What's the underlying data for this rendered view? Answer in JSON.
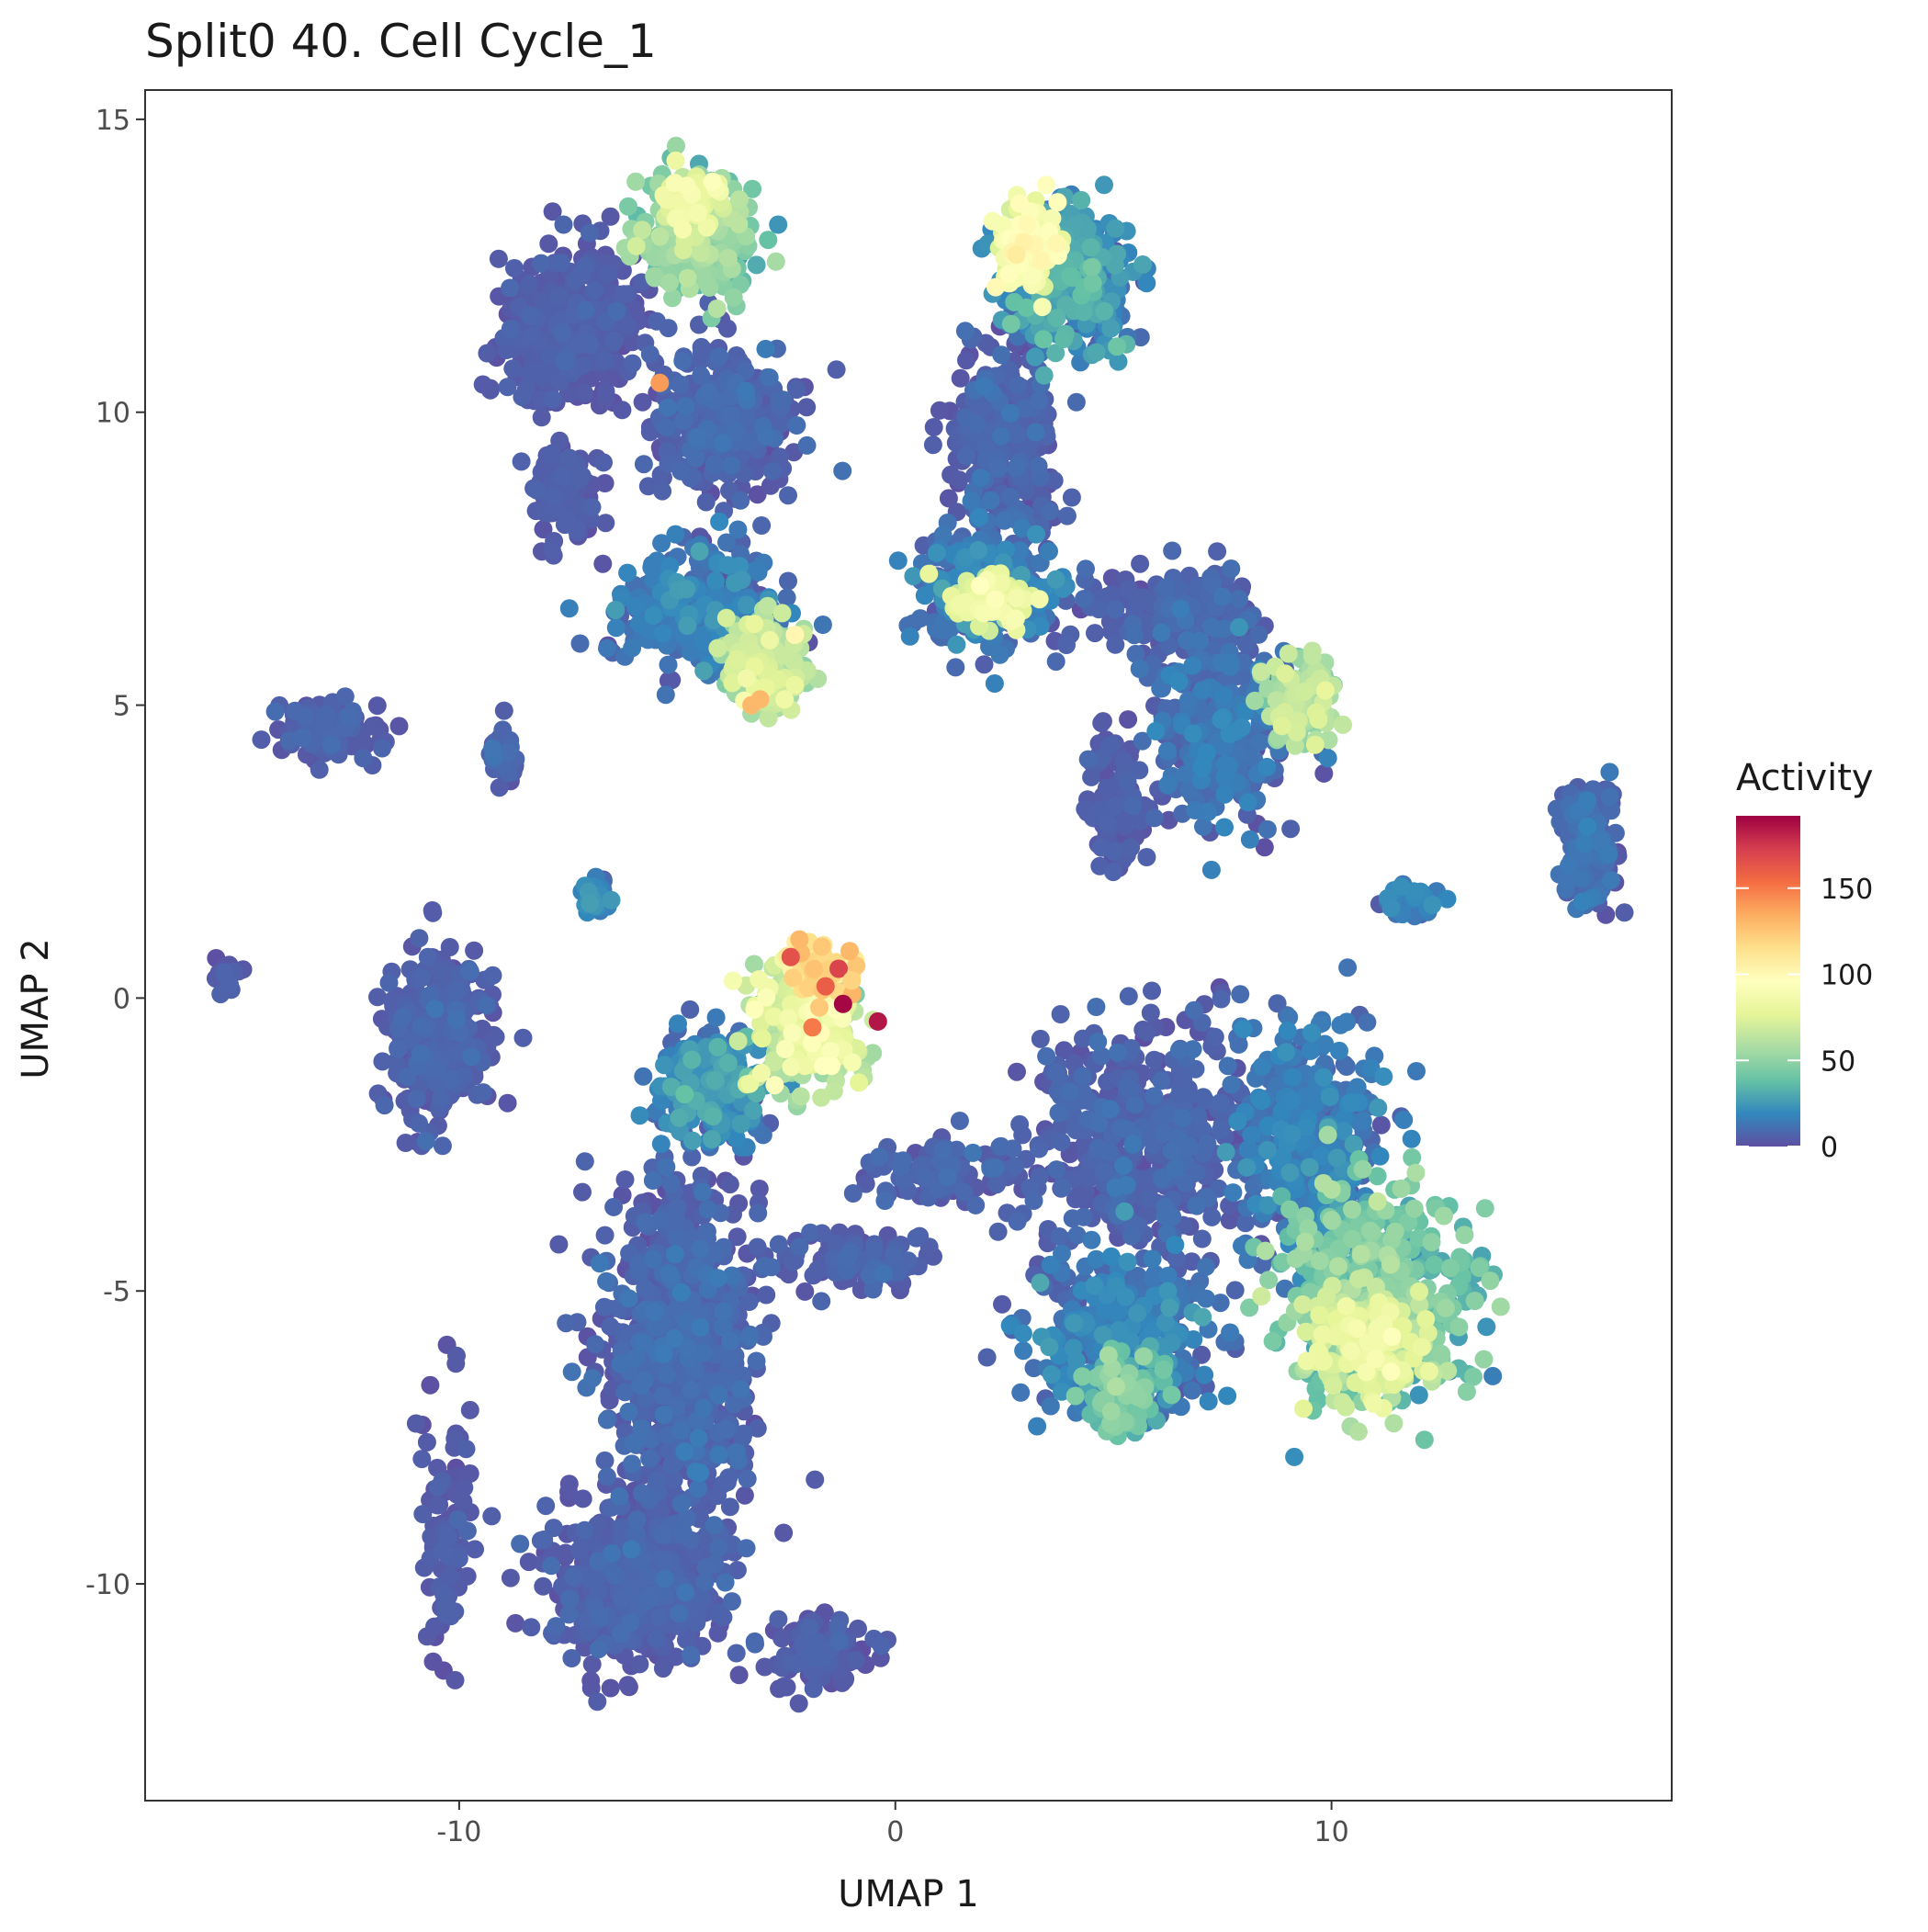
{
  "chart_data": {
    "type": "scatter",
    "title": "Split0 40. Cell Cycle_1",
    "xlabel": "UMAP 1",
    "ylabel": "UMAP 2",
    "xlim": [
      -17.2,
      17.8
    ],
    "ylim": [
      -13.7,
      15.5
    ],
    "x_ticks": [
      -10,
      0,
      10
    ],
    "x_tick_labels": [
      "-10",
      "0",
      "10"
    ],
    "y_ticks": [
      -10,
      -5,
      0,
      5,
      10,
      15
    ],
    "y_tick_labels": [
      "-10",
      "-5",
      "0",
      "5",
      "10",
      "15"
    ],
    "grid": false,
    "legend": {
      "title": "Activity",
      "placement": "right",
      "range": [
        0,
        192
      ],
      "ticks": [
        0,
        50,
        100,
        150
      ],
      "tick_labels": [
        "0",
        "50",
        "100",
        "150"
      ],
      "colormap": [
        "#5E4FA2",
        "#3288BD",
        "#66C2A5",
        "#ABDDA4",
        "#E6F598",
        "#FFFFBF",
        "#FEE08B",
        "#FDAE61",
        "#F46D43",
        "#D53E4F",
        "#9E0142"
      ]
    },
    "clusters": [
      {
        "center": [
          -4.5,
          13.0
        ],
        "spread": [
          1.0,
          0.8
        ],
        "n": 380,
        "activity": 45,
        "spread_activity": 20
      },
      {
        "center": [
          -4.6,
          13.6
        ],
        "spread": [
          0.6,
          0.4
        ],
        "n": 80,
        "activity": 75,
        "spread_activity": 15
      },
      {
        "center": [
          -7.5,
          11.5
        ],
        "spread": [
          1.2,
          1.1
        ],
        "n": 420,
        "activity": 4,
        "spread_activity": 4
      },
      {
        "center": [
          -4.0,
          9.8
        ],
        "spread": [
          1.4,
          1.1
        ],
        "n": 360,
        "activity": 6,
        "spread_activity": 6
      },
      {
        "center": [
          -7.6,
          8.6
        ],
        "spread": [
          0.6,
          0.7
        ],
        "n": 110,
        "activity": 4,
        "spread_activity": 4
      },
      {
        "center": [
          -4.5,
          6.6
        ],
        "spread": [
          1.5,
          0.9
        ],
        "n": 380,
        "activity": 12,
        "spread_activity": 12
      },
      {
        "center": [
          -3.0,
          5.7
        ],
        "spread": [
          0.8,
          0.6
        ],
        "n": 180,
        "activity": 60,
        "spread_activity": 22
      },
      {
        "center": [
          3.0,
          12.8
        ],
        "spread": [
          0.6,
          0.6
        ],
        "n": 130,
        "activity": 85,
        "spread_activity": 18
      },
      {
        "center": [
          4.0,
          12.3
        ],
        "spread": [
          1.2,
          1.0
        ],
        "n": 320,
        "activity": 22,
        "spread_activity": 18
      },
      {
        "center": [
          2.5,
          9.5
        ],
        "spread": [
          1.0,
          1.4
        ],
        "n": 320,
        "activity": 6,
        "spread_activity": 6
      },
      {
        "center": [
          2.0,
          7.0
        ],
        "spread": [
          1.2,
          0.8
        ],
        "n": 320,
        "activity": 14,
        "spread_activity": 12
      },
      {
        "center": [
          2.2,
          6.8
        ],
        "spread": [
          0.8,
          0.3
        ],
        "n": 90,
        "activity": 75,
        "spread_activity": 18
      },
      {
        "center": [
          6.5,
          6.6
        ],
        "spread": [
          1.8,
          0.6
        ],
        "n": 200,
        "activity": 6,
        "spread_activity": 6
      },
      {
        "center": [
          7.5,
          4.5
        ],
        "spread": [
          1.3,
          1.3
        ],
        "n": 300,
        "activity": 10,
        "spread_activity": 10
      },
      {
        "center": [
          9.3,
          5.0
        ],
        "spread": [
          0.7,
          0.6
        ],
        "n": 140,
        "activity": 55,
        "spread_activity": 20
      },
      {
        "center": [
          5.0,
          3.4
        ],
        "spread": [
          0.6,
          1.0
        ],
        "n": 120,
        "activity": 4,
        "spread_activity": 4
      },
      {
        "center": [
          -13.1,
          4.6
        ],
        "spread": [
          0.9,
          0.4
        ],
        "n": 120,
        "activity": 5,
        "spread_activity": 5
      },
      {
        "center": [
          -9.0,
          4.2
        ],
        "spread": [
          0.3,
          0.4
        ],
        "n": 40,
        "activity": 6,
        "spread_activity": 6
      },
      {
        "center": [
          -6.8,
          1.7
        ],
        "spread": [
          0.35,
          0.3
        ],
        "n": 40,
        "activity": 14,
        "spread_activity": 12
      },
      {
        "center": [
          -10.5,
          -0.7
        ],
        "spread": [
          0.9,
          1.2
        ],
        "n": 340,
        "activity": 5,
        "spread_activity": 5
      },
      {
        "center": [
          -15.3,
          0.4
        ],
        "spread": [
          0.3,
          0.3
        ],
        "n": 15,
        "activity": 4,
        "spread_activity": 4
      },
      {
        "center": [
          -4.2,
          -1.5
        ],
        "spread": [
          1.0,
          0.8
        ],
        "n": 260,
        "activity": 18,
        "spread_activity": 14
      },
      {
        "center": [
          -2.0,
          -0.5
        ],
        "spread": [
          1.0,
          0.8
        ],
        "n": 260,
        "activity": 70,
        "spread_activity": 25
      },
      {
        "center": [
          -1.8,
          0.5
        ],
        "spread": [
          0.6,
          0.4
        ],
        "n": 50,
        "activity": 115,
        "spread_activity": 20
      },
      {
        "center": [
          -5.0,
          -6.0
        ],
        "spread": [
          1.4,
          2.4
        ],
        "n": 900,
        "activity": 6,
        "spread_activity": 7
      },
      {
        "center": [
          -6.0,
          -10.0
        ],
        "spread": [
          1.6,
          1.1
        ],
        "n": 600,
        "activity": 5,
        "spread_activity": 5
      },
      {
        "center": [
          -1.8,
          -11.2
        ],
        "spread": [
          1.0,
          0.5
        ],
        "n": 130,
        "activity": 4,
        "spread_activity": 4
      },
      {
        "center": [
          -10.3,
          -9.0
        ],
        "spread": [
          0.5,
          1.7
        ],
        "n": 100,
        "activity": 4,
        "spread_activity": 4
      },
      {
        "center": [
          5.5,
          -2.5
        ],
        "spread": [
          2.3,
          1.7
        ],
        "n": 550,
        "activity": 6,
        "spread_activity": 6
      },
      {
        "center": [
          5.2,
          -5.8
        ],
        "spread": [
          1.8,
          1.1
        ],
        "n": 340,
        "activity": 14,
        "spread_activity": 12
      },
      {
        "center": [
          5.2,
          -6.8
        ],
        "spread": [
          0.8,
          0.6
        ],
        "n": 110,
        "activity": 40,
        "spread_activity": 16
      },
      {
        "center": [
          9.5,
          -2.5
        ],
        "spread": [
          1.3,
          1.6
        ],
        "n": 360,
        "activity": 14,
        "spread_activity": 10
      },
      {
        "center": [
          11.0,
          -5.0
        ],
        "spread": [
          1.8,
          1.4
        ],
        "n": 480,
        "activity": 40,
        "spread_activity": 18
      },
      {
        "center": [
          10.8,
          -5.9
        ],
        "spread": [
          1.1,
          0.8
        ],
        "n": 220,
        "activity": 70,
        "spread_activity": 18
      },
      {
        "center": [
          1.0,
          -3.0
        ],
        "spread": [
          1.5,
          0.4
        ],
        "n": 110,
        "activity": 6,
        "spread_activity": 6
      },
      {
        "center": [
          -1.0,
          -4.5
        ],
        "spread": [
          1.6,
          0.4
        ],
        "n": 110,
        "activity": 5,
        "spread_activity": 5
      },
      {
        "center": [
          15.9,
          2.6
        ],
        "spread": [
          0.5,
          0.9
        ],
        "n": 160,
        "activity": 8,
        "spread_activity": 8
      },
      {
        "center": [
          11.8,
          1.6
        ],
        "spread": [
          0.6,
          0.25
        ],
        "n": 40,
        "activity": 14,
        "spread_activity": 14
      }
    ],
    "highlight_points": [
      {
        "x": -1.2,
        "y": -0.1,
        "value": 190
      },
      {
        "x": -1.3,
        "y": 0.5,
        "value": 170
      },
      {
        "x": -0.4,
        "y": -0.4,
        "value": 185
      },
      {
        "x": -2.4,
        "y": 0.7,
        "value": 165
      },
      {
        "x": -1.6,
        "y": 0.2,
        "value": 160
      },
      {
        "x": -1.9,
        "y": -0.5,
        "value": 150
      },
      {
        "x": -5.4,
        "y": 10.5,
        "value": 140
      },
      {
        "x": -3.3,
        "y": 5.0,
        "value": 130
      },
      {
        "x": -3.1,
        "y": 5.1,
        "value": 130
      },
      {
        "x": -2.2,
        "y": 1.0,
        "value": 130
      },
      {
        "x": -1.0,
        "y": 0.3,
        "value": 120
      }
    ]
  }
}
